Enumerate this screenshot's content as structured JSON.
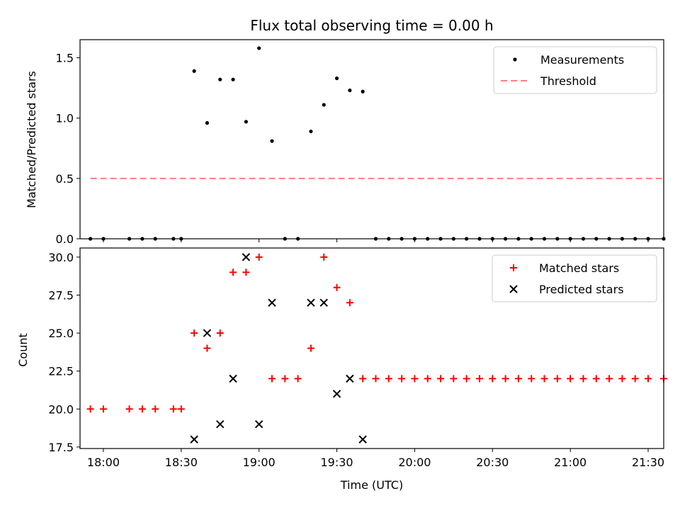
{
  "chart_data": [
    {
      "type": "scatter",
      "title": "Flux total observing time = 0.00 h",
      "ylabel": "Matched/Predicted stars",
      "ylim": [
        0,
        1.65
      ],
      "xlim": [
        "17:51",
        "21:36"
      ],
      "yticks": [
        "0.0",
        "0.5",
        "1.0",
        "1.5"
      ],
      "legend_position": "top-right",
      "grid": false,
      "series": [
        {
          "name": "Measurements",
          "marker": "dot",
          "color": "#000000",
          "points": [
            [
              "17:55",
              0
            ],
            [
              "18:00",
              0
            ],
            [
              "18:10",
              0
            ],
            [
              "18:15",
              0
            ],
            [
              "18:20",
              0
            ],
            [
              "18:27",
              0
            ],
            [
              "18:30",
              0
            ],
            [
              "18:35",
              1.39
            ],
            [
              "18:40",
              0.96
            ],
            [
              "18:45",
              1.32
            ],
            [
              "18:50",
              1.32
            ],
            [
              "18:55",
              0.97
            ],
            [
              "19:00",
              1.58
            ],
            [
              "19:05",
              0.81
            ],
            [
              "19:10",
              0
            ],
            [
              "19:15",
              0
            ],
            [
              "19:20",
              0.89
            ],
            [
              "19:25",
              1.11
            ],
            [
              "19:30",
              1.33
            ],
            [
              "19:35",
              1.23
            ],
            [
              "19:40",
              1.22
            ],
            [
              "19:45",
              0
            ],
            [
              "19:50",
              0
            ],
            [
              "19:55",
              0
            ],
            [
              "20:00",
              0
            ],
            [
              "20:05",
              0
            ],
            [
              "20:10",
              0
            ],
            [
              "20:15",
              0
            ],
            [
              "20:20",
              0
            ],
            [
              "20:25",
              0
            ],
            [
              "20:30",
              0
            ],
            [
              "20:35",
              0
            ],
            [
              "20:40",
              0
            ],
            [
              "20:45",
              0
            ],
            [
              "20:50",
              0
            ],
            [
              "20:55",
              0
            ],
            [
              "21:00",
              0
            ],
            [
              "21:05",
              0
            ],
            [
              "21:10",
              0
            ],
            [
              "21:15",
              0
            ],
            [
              "21:20",
              0
            ],
            [
              "21:25",
              0
            ],
            [
              "21:30",
              0
            ],
            [
              "21:36",
              0
            ]
          ]
        },
        {
          "name": "Threshold",
          "marker": "dashed-line",
          "color": "#ff7f7f",
          "points": [
            [
              "17:55",
              0.5
            ],
            [
              "21:36",
              0.5
            ]
          ]
        }
      ]
    },
    {
      "type": "scatter",
      "ylabel": "Count",
      "xlabel": "Time (UTC)",
      "ylim": [
        17.4,
        30.6
      ],
      "xlim": [
        "17:51",
        "21:36"
      ],
      "yticks": [
        "17.5",
        "20.0",
        "22.5",
        "25.0",
        "27.5",
        "30.0"
      ],
      "xticks": [
        "18:00",
        "18:30",
        "19:00",
        "19:30",
        "20:00",
        "20:30",
        "21:00",
        "21:30"
      ],
      "legend_position": "top-right",
      "grid": false,
      "series": [
        {
          "name": "Matched stars",
          "marker": "plus",
          "color": "#ff0000",
          "points": [
            [
              "17:55",
              20
            ],
            [
              "18:00",
              20
            ],
            [
              "18:10",
              20
            ],
            [
              "18:15",
              20
            ],
            [
              "18:20",
              20
            ],
            [
              "18:27",
              20
            ],
            [
              "18:30",
              20
            ],
            [
              "18:35",
              25
            ],
            [
              "18:40",
              24
            ],
            [
              "18:45",
              25
            ],
            [
              "18:50",
              29
            ],
            [
              "18:55",
              29
            ],
            [
              "19:00",
              30
            ],
            [
              "19:05",
              22
            ],
            [
              "19:10",
              22
            ],
            [
              "19:15",
              22
            ],
            [
              "19:20",
              24
            ],
            [
              "19:25",
              30
            ],
            [
              "19:30",
              28
            ],
            [
              "19:35",
              27
            ],
            [
              "19:40",
              22
            ],
            [
              "19:45",
              22
            ],
            [
              "19:50",
              22
            ],
            [
              "19:55",
              22
            ],
            [
              "20:00",
              22
            ],
            [
              "20:05",
              22
            ],
            [
              "20:10",
              22
            ],
            [
              "20:15",
              22
            ],
            [
              "20:20",
              22
            ],
            [
              "20:25",
              22
            ],
            [
              "20:30",
              22
            ],
            [
              "20:35",
              22
            ],
            [
              "20:40",
              22
            ],
            [
              "20:45",
              22
            ],
            [
              "20:50",
              22
            ],
            [
              "20:55",
              22
            ],
            [
              "21:00",
              22
            ],
            [
              "21:05",
              22
            ],
            [
              "21:10",
              22
            ],
            [
              "21:15",
              22
            ],
            [
              "21:20",
              22
            ],
            [
              "21:25",
              22
            ],
            [
              "21:30",
              22
            ],
            [
              "21:36",
              22
            ]
          ]
        },
        {
          "name": "Predicted stars",
          "marker": "x",
          "color": "#000000",
          "points": [
            [
              "18:35",
              18
            ],
            [
              "18:40",
              25
            ],
            [
              "18:45",
              19
            ],
            [
              "18:50",
              22
            ],
            [
              "18:55",
              30
            ],
            [
              "19:00",
              19
            ],
            [
              "19:05",
              27
            ],
            [
              "19:20",
              27
            ],
            [
              "19:25",
              27
            ],
            [
              "19:30",
              21
            ],
            [
              "19:35",
              22
            ],
            [
              "19:40",
              18
            ]
          ]
        }
      ]
    }
  ]
}
